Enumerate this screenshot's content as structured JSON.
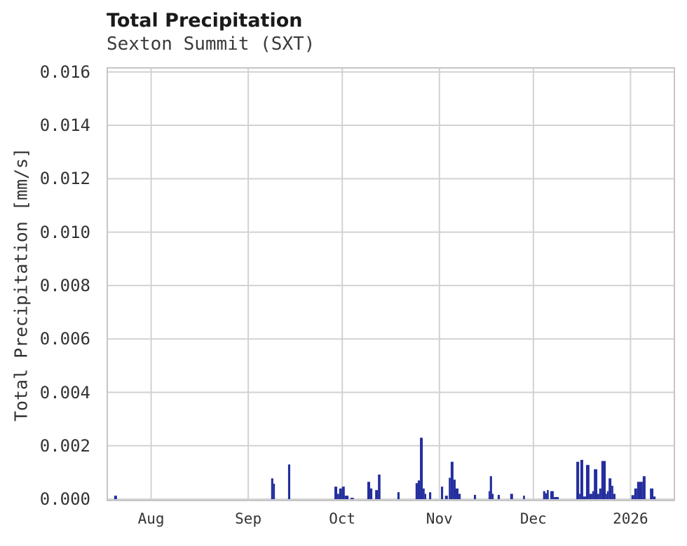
{
  "header": {
    "title": "Total Precipitation",
    "subtitle": "Sexton Summit (SXT)"
  },
  "colors": {
    "bar": "#242e9d",
    "grid": "#d2d2d2",
    "border": "#c6c6c6",
    "title_text": "#1a1a1a",
    "subtitle_text": "#3a3a3a",
    "tick_text": "#333333",
    "background": "#ffffff"
  },
  "chart_data": {
    "type": "bar",
    "title": "Total Precipitation",
    "subtitle": "Sexton Summit (SXT)",
    "station": "Sexton Summit (SXT)",
    "xlabel": "",
    "ylabel": "Total Precipitation [mm/s]",
    "unit": "mm/s",
    "grid": true,
    "legend": false,
    "x_axis": {
      "kind": "time",
      "start_date": "2025-07-18",
      "end_date": "2026-01-15",
      "total_days": 181,
      "ticks": [
        {
          "label": "Aug",
          "day": 14
        },
        {
          "label": "Sep",
          "day": 45
        },
        {
          "label": "Oct",
          "day": 75
        },
        {
          "label": "Nov",
          "day": 106
        },
        {
          "label": "Dec",
          "day": 136
        },
        {
          "label": "2026",
          "day": 167
        }
      ]
    },
    "y_axis": {
      "lim": [
        -5e-05,
        0.01615
      ],
      "ticks": [
        {
          "label": "0.000",
          "value": 0.0
        },
        {
          "label": "0.002",
          "value": 0.002
        },
        {
          "label": "0.004",
          "value": 0.004
        },
        {
          "label": "0.006",
          "value": 0.006
        },
        {
          "label": "0.008",
          "value": 0.008
        },
        {
          "label": "0.010",
          "value": 0.01
        },
        {
          "label": "0.012",
          "value": 0.012
        },
        {
          "label": "0.014",
          "value": 0.014
        },
        {
          "label": "0.016",
          "value": 0.016
        }
      ]
    },
    "series_name": "Total Precipitation",
    "segment_fields": [
      "day_start",
      "day_end",
      "value_mm_per_s"
    ],
    "segments": [
      [
        2.2,
        3.1,
        0.00013
      ],
      [
        52.3,
        53.0,
        0.00078
      ],
      [
        53.0,
        53.5,
        0.00058
      ],
      [
        57.7,
        58.4,
        0.0013
      ],
      [
        72.5,
        73.4,
        0.00047
      ],
      [
        73.4,
        74.0,
        0.0002
      ],
      [
        74.0,
        74.9,
        0.0004
      ],
      [
        74.9,
        75.8,
        0.00047
      ],
      [
        75.8,
        77.0,
        0.00013
      ],
      [
        77.6,
        78.7,
        5e-05
      ],
      [
        83.0,
        83.9,
        0.00065
      ],
      [
        83.9,
        84.6,
        0.0004
      ],
      [
        85.5,
        86.4,
        0.00034
      ],
      [
        86.4,
        87.2,
        0.00092
      ],
      [
        92.6,
        93.3,
        0.00026
      ],
      [
        98.4,
        99.1,
        0.0006
      ],
      [
        99.1,
        99.8,
        0.0007
      ],
      [
        99.8,
        100.7,
        0.0023
      ],
      [
        100.7,
        101.3,
        0.0004
      ],
      [
        101.3,
        101.8,
        0.0002
      ],
      [
        102.7,
        103.4,
        0.00026
      ],
      [
        106.5,
        107.2,
        0.00047
      ],
      [
        107.8,
        108.7,
        0.00013
      ],
      [
        109.0,
        109.6,
        0.0008
      ],
      [
        109.6,
        110.5,
        0.0014
      ],
      [
        110.5,
        111.2,
        0.00073
      ],
      [
        111.2,
        112.1,
        0.0004
      ],
      [
        112.1,
        112.8,
        0.0002
      ],
      [
        117.0,
        117.7,
        0.00016
      ],
      [
        121.7,
        122.1,
        0.0003
      ],
      [
        122.1,
        122.8,
        0.00086
      ],
      [
        122.8,
        123.3,
        0.0002
      ],
      [
        124.6,
        125.3,
        0.00016
      ],
      [
        128.6,
        129.5,
        0.0002
      ],
      [
        132.7,
        133.3,
        0.00013
      ],
      [
        139.1,
        139.8,
        0.0003
      ],
      [
        139.8,
        140.3,
        0.00022
      ],
      [
        140.3,
        140.9,
        0.00034
      ],
      [
        141.4,
        142.5,
        0.0003
      ],
      [
        142.5,
        144.1,
        8e-05
      ],
      [
        149.7,
        150.6,
        0.0014
      ],
      [
        150.6,
        151.0,
        0.0002
      ],
      [
        151.0,
        151.9,
        0.00147
      ],
      [
        151.9,
        152.8,
        0.0001
      ],
      [
        152.8,
        153.9,
        0.00128
      ],
      [
        153.9,
        154.8,
        0.0002
      ],
      [
        154.8,
        155.3,
        0.0003
      ],
      [
        155.3,
        156.4,
        0.00112
      ],
      [
        156.4,
        157.0,
        0.0002
      ],
      [
        157.0,
        157.7,
        0.0004
      ],
      [
        157.7,
        159.1,
        0.00143
      ],
      [
        159.1,
        159.5,
        0.0002
      ],
      [
        159.5,
        160.0,
        0.0003
      ],
      [
        160.0,
        160.9,
        0.00078
      ],
      [
        160.9,
        161.5,
        0.0005
      ],
      [
        161.5,
        162.2,
        0.0002
      ],
      [
        167.3,
        168.2,
        0.00015
      ],
      [
        168.2,
        169.1,
        0.0004
      ],
      [
        169.1,
        170.9,
        0.00065
      ],
      [
        170.9,
        171.8,
        0.00086
      ],
      [
        173.2,
        174.3,
        0.0004
      ],
      [
        174.3,
        175.0,
        0.0001
      ]
    ]
  }
}
